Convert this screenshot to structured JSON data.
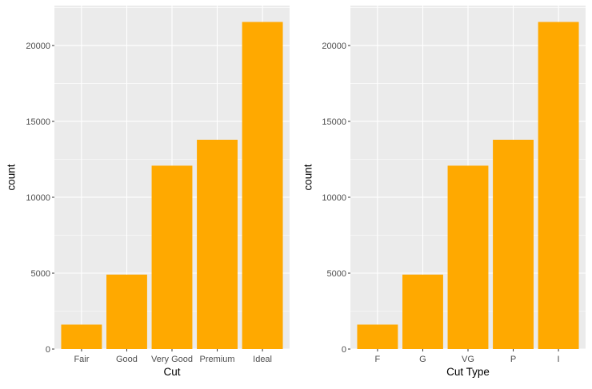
{
  "colors": {
    "panel_background": "#ebebeb",
    "grid_major": "#ffffff",
    "bar_fill": "#ffa900",
    "tick_text": "#4d4d4d",
    "axis_title_text": "#000000"
  },
  "chart_data": [
    {
      "type": "bar",
      "title": "",
      "xlabel": "Cut",
      "ylabel": "count",
      "categories": [
        "Fair",
        "Good",
        "Very Good",
        "Premium",
        "Ideal"
      ],
      "values": [
        1610,
        4906,
        12082,
        13791,
        21551
      ],
      "ylim": [
        0,
        22629
      ],
      "yticks": [
        0,
        5000,
        10000,
        15000,
        20000
      ],
      "ytick_labels": [
        "0",
        "5000",
        "10000",
        "15000",
        "20000"
      ],
      "grid": true,
      "legend": "none"
    },
    {
      "type": "bar",
      "title": "",
      "xlabel": "Cut Type",
      "ylabel": "count",
      "categories": [
        "F",
        "G",
        "VG",
        "P",
        "I"
      ],
      "values": [
        1610,
        4906,
        12082,
        13791,
        21551
      ],
      "ylim": [
        0,
        22629
      ],
      "yticks": [
        0,
        5000,
        10000,
        15000,
        20000
      ],
      "ytick_labels": [
        "0",
        "5000",
        "10000",
        "15000",
        "20000"
      ],
      "grid": true,
      "legend": "none"
    }
  ]
}
